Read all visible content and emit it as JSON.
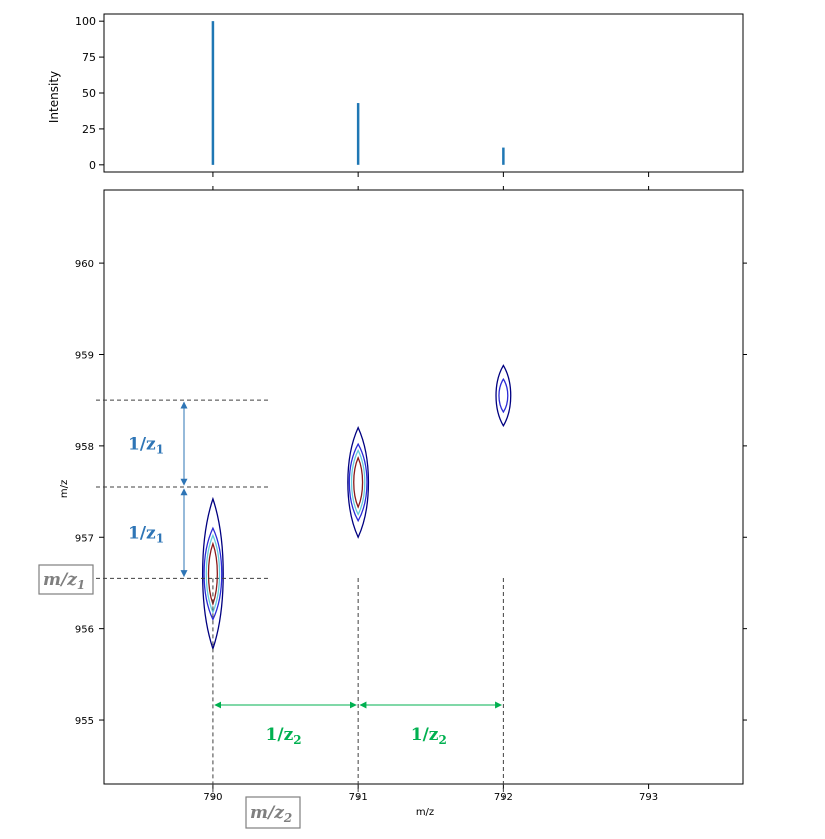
{
  "chart_data": [
    {
      "type": "bar",
      "title": "",
      "xlabel": "",
      "ylabel": "Intensity",
      "ylim": [
        -5,
        105
      ],
      "yticks": [
        0,
        25,
        50,
        75,
        100
      ],
      "xlim": [
        789.25,
        793.65
      ],
      "bar_color": "#1f77b4",
      "x": [
        790.0,
        791.0,
        792.0
      ],
      "values": [
        100,
        43,
        12
      ]
    },
    {
      "type": "contour",
      "title": "",
      "xlabel": "m/z",
      "ylabel": "m/z",
      "xlim": [
        789.25,
        793.65
      ],
      "ylim": [
        954.3,
        960.8
      ],
      "xticks": [
        790,
        791,
        792,
        793
      ],
      "yticks": [
        955,
        956,
        957,
        958,
        959,
        960
      ],
      "contour_colors": [
        "#000080",
        "#2b2bd6",
        "#66ccdd",
        "#8b1a1a"
      ],
      "peaks": [
        {
          "x": 790.0,
          "y": 956.6,
          "levels": [
            {
              "rx": 0.07,
              "ry": 0.82
            },
            {
              "rx": 0.06,
              "ry": 0.5
            },
            {
              "rx": 0.045,
              "ry": 0.42
            },
            {
              "rx": 0.03,
              "ry": 0.33
            }
          ]
        },
        {
          "x": 791.0,
          "y": 957.6,
          "levels": [
            {
              "rx": 0.07,
              "ry": 0.6
            },
            {
              "rx": 0.06,
              "ry": 0.42
            },
            {
              "rx": 0.045,
              "ry": 0.35
            },
            {
              "rx": 0.03,
              "ry": 0.27
            }
          ]
        },
        {
          "x": 792.0,
          "y": 958.55,
          "levels": [
            {
              "rx": 0.05,
              "ry": 0.33
            },
            {
              "rx": 0.03,
              "ry": 0.18
            }
          ]
        }
      ],
      "annotations": {
        "inv_z1": "1/z",
        "inv_z1_sub": "1",
        "inv_z2": "1/z",
        "inv_z2_sub": "2",
        "m_over_z1": "m/z",
        "m_over_z1_sub": "1",
        "m_over_z2": "m/z",
        "m_over_z2_sub": "2",
        "blue_color": "#2e75b6",
        "green_color": "#00b050",
        "ref_y_levels": [
          956.55,
          957.55,
          958.5
        ],
        "ref_x_levels": [
          790.0,
          791.0,
          792.0
        ]
      }
    }
  ]
}
